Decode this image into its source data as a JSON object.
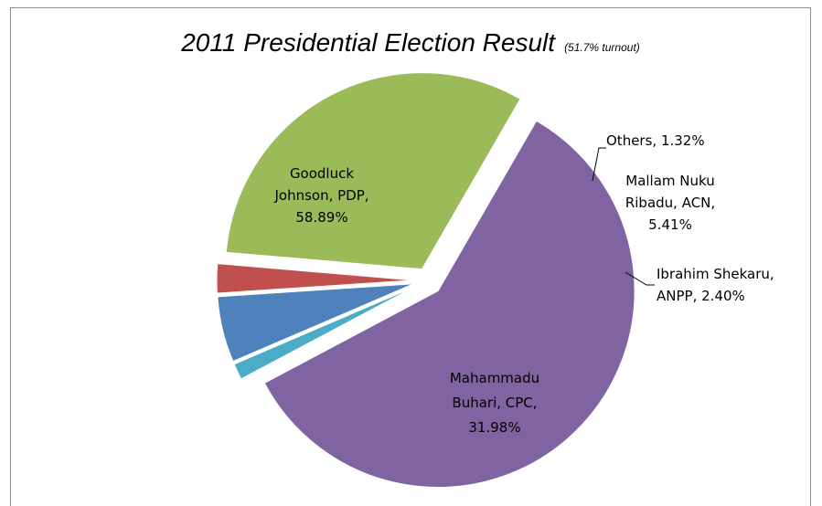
{
  "chart_data": {
    "type": "pie",
    "title": "2011 Presidential Election Result",
    "subtitle": "(51.7% turnout)",
    "slices": [
      {
        "name": "Goodluck Johnson, PDP",
        "value": 58.89,
        "label": [
          "Goodluck",
          "Johnson, PDP,",
          "58.89%"
        ],
        "color": "#8064A2"
      },
      {
        "name": "Others",
        "value": 1.32,
        "label": [
          "Others, 1.32%"
        ],
        "color": "#4BACC6"
      },
      {
        "name": "Mallam Nuku Ribadu, ACN",
        "value": 5.41,
        "label": [
          "Mallam Nuku",
          "Ribadu, ACN,",
          "5.41%"
        ],
        "color": "#4F81BD"
      },
      {
        "name": "Ibrahim Shekaru, ANPP",
        "value": 2.4,
        "label": [
          "Ibrahim Shekaru,",
          "ANPP, 2.40%"
        ],
        "color": "#C0504D"
      },
      {
        "name": "Mahammadu Buhari, CPC",
        "value": 31.98,
        "label": [
          "Mahammadu",
          "Buhari, CPC,",
          "31.98%"
        ],
        "color": "#9BBB59"
      }
    ]
  }
}
